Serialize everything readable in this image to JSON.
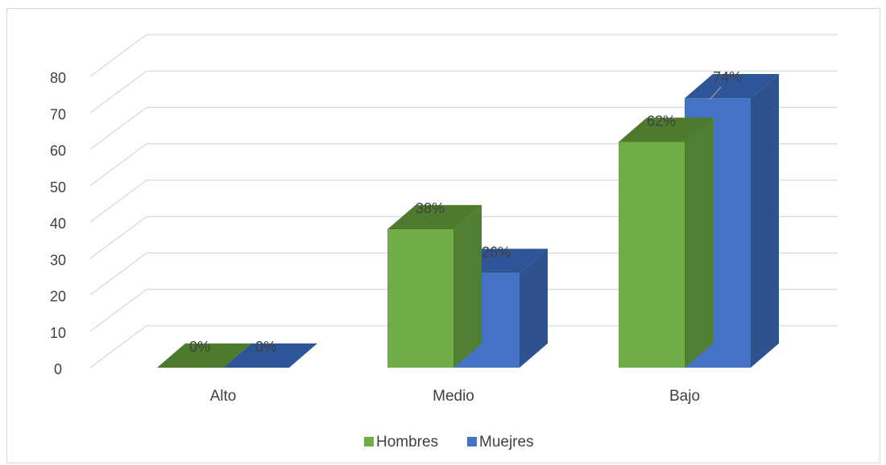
{
  "chart_data": {
    "type": "bar",
    "style": "3d-clustered-column",
    "categories": [
      "Alto",
      "Medio",
      "Bajo"
    ],
    "series": [
      {
        "name": "Hombres",
        "values": [
          0,
          38,
          62
        ],
        "labels": [
          "0%",
          "38%",
          "62%"
        ],
        "color": "#70AD47",
        "side_color": "#507E32",
        "top_color": "#4E7A2E"
      },
      {
        "name": "Muejres",
        "values": [
          0,
          26,
          74
        ],
        "labels": [
          "0%",
          "26%",
          "74%"
        ],
        "color": "#4472C4",
        "side_color": "#2F528F",
        "top_color": "#2E5597"
      }
    ],
    "yticks": [
      0,
      10,
      20,
      30,
      40,
      50,
      60,
      70,
      80
    ],
    "ylim": [
      0,
      80
    ],
    "grid": true,
    "legend": "bottom",
    "title": "",
    "xlabel": "",
    "ylabel": ""
  }
}
